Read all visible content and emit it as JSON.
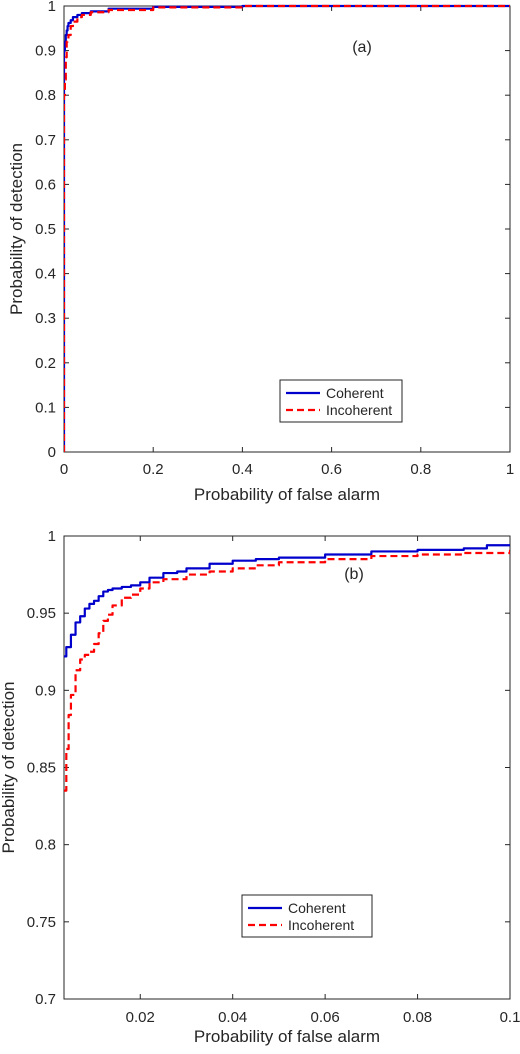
{
  "chart_data": [
    {
      "type": "line",
      "panel_label": "(a)",
      "xlabel": "Probability of false alarm",
      "ylabel": "Probability of detection",
      "xlim": [
        0,
        1
      ],
      "ylim": [
        0,
        1
      ],
      "xticks": [
        0,
        0.2,
        0.4,
        0.6,
        0.8,
        1
      ],
      "yticks": [
        0,
        0.1,
        0.2,
        0.3,
        0.4,
        0.5,
        0.6,
        0.7,
        0.8,
        0.9,
        1
      ],
      "xtick_labels": [
        "0",
        "0.2",
        "0.4",
        "0.6",
        "0.8",
        "1"
      ],
      "ytick_labels": [
        "0",
        "0.1",
        "0.2",
        "0.3",
        "0.4",
        "0.5",
        "0.6",
        "0.7",
        "0.8",
        "0.9",
        "1"
      ],
      "grid": false,
      "legend_position": "bottom-right",
      "series": [
        {
          "name": "Coherent",
          "color": "#0000cc",
          "style": "solid",
          "x": [
            0,
            0,
            0.002,
            0.004,
            0.006,
            0.008,
            0.01,
            0.015,
            0.02,
            0.03,
            0.04,
            0.06,
            0.1,
            0.2,
            0.4,
            0.6,
            0.8,
            1
          ],
          "y": [
            0,
            0.9,
            0.92,
            0.935,
            0.945,
            0.955,
            0.962,
            0.968,
            0.975,
            0.98,
            0.984,
            0.988,
            0.994,
            0.998,
            1,
            1,
            1,
            1
          ]
        },
        {
          "name": "Incoherent",
          "color": "#ff0000",
          "style": "dashed",
          "x": [
            0,
            0,
            0.002,
            0.004,
            0.006,
            0.008,
            0.01,
            0.015,
            0.02,
            0.03,
            0.04,
            0.06,
            0.1,
            0.2,
            0.4,
            0.6,
            0.8,
            1
          ],
          "y": [
            0,
            0.8,
            0.835,
            0.885,
            0.92,
            0.925,
            0.935,
            0.955,
            0.965,
            0.975,
            0.98,
            0.986,
            0.991,
            0.997,
            1,
            1,
            1,
            1
          ]
        }
      ]
    },
    {
      "type": "line",
      "panel_label": "(b)",
      "xlabel": "Probability of false alarm",
      "ylabel": "Probability of detection",
      "xlim": [
        0.0035,
        0.1
      ],
      "ylim": [
        0.7,
        1
      ],
      "xticks": [
        0.02,
        0.04,
        0.06,
        0.08,
        0.1
      ],
      "yticks": [
        0.7,
        0.75,
        0.8,
        0.85,
        0.9,
        0.95,
        1
      ],
      "xtick_labels": [
        "0.02",
        "0.04",
        "0.06",
        "0.08",
        "0.1"
      ],
      "ytick_labels": [
        "0.7",
        "0.75",
        "0.8",
        "0.85",
        "0.9",
        "0.95",
        "1"
      ],
      "grid": false,
      "legend_position": "bottom-center",
      "series": [
        {
          "name": "Coherent",
          "color": "#0000cc",
          "style": "solid",
          "x": [
            0.0035,
            0.004,
            0.005,
            0.006,
            0.007,
            0.008,
            0.009,
            0.01,
            0.011,
            0.012,
            0.013,
            0.014,
            0.016,
            0.018,
            0.02,
            0.022,
            0.025,
            0.028,
            0.03,
            0.035,
            0.04,
            0.045,
            0.05,
            0.06,
            0.07,
            0.08,
            0.09,
            0.095,
            0.1
          ],
          "y": [
            0.922,
            0.928,
            0.936,
            0.944,
            0.948,
            0.953,
            0.956,
            0.958,
            0.961,
            0.964,
            0.965,
            0.966,
            0.967,
            0.968,
            0.97,
            0.973,
            0.976,
            0.977,
            0.979,
            0.982,
            0.984,
            0.985,
            0.986,
            0.988,
            0.99,
            0.991,
            0.992,
            0.994,
            0.994
          ]
        },
        {
          "name": "Incoherent",
          "color": "#ff0000",
          "style": "dashed",
          "x": [
            0.0035,
            0.004,
            0.0045,
            0.005,
            0.006,
            0.007,
            0.008,
            0.009,
            0.01,
            0.011,
            0.012,
            0.013,
            0.014,
            0.016,
            0.018,
            0.02,
            0.022,
            0.025,
            0.03,
            0.035,
            0.04,
            0.045,
            0.05,
            0.06,
            0.07,
            0.08,
            0.09,
            0.1
          ],
          "y": [
            0.835,
            0.862,
            0.884,
            0.897,
            0.913,
            0.92,
            0.923,
            0.925,
            0.93,
            0.937,
            0.945,
            0.949,
            0.955,
            0.96,
            0.962,
            0.966,
            0.97,
            0.972,
            0.975,
            0.977,
            0.979,
            0.981,
            0.983,
            0.985,
            0.987,
            0.988,
            0.989,
            0.991
          ]
        }
      ]
    }
  ]
}
